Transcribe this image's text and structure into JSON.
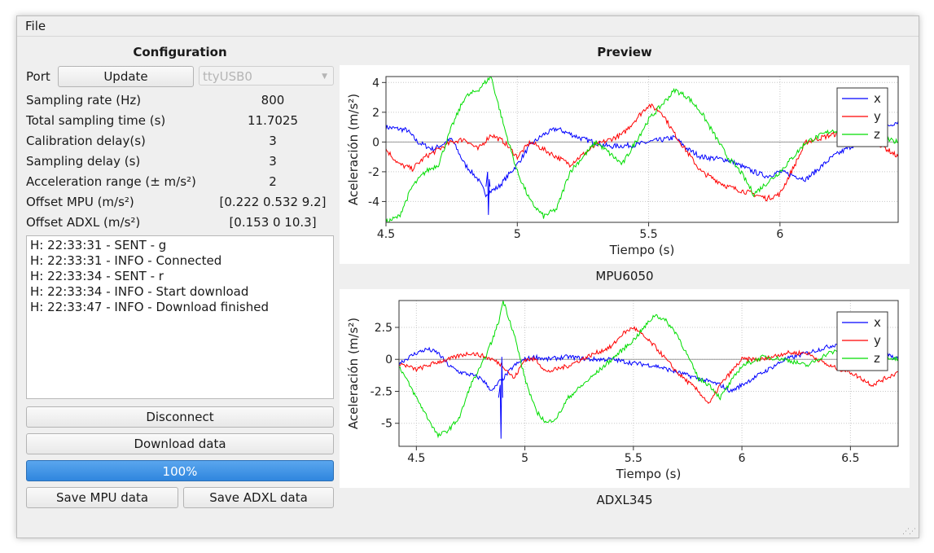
{
  "menu": {
    "file_label": "File"
  },
  "config": {
    "title": "Configuration",
    "port_label": "Port",
    "update_button": "Update",
    "port_value": "ttyUSB0",
    "rows": [
      {
        "label": "Sampling rate (Hz)",
        "value": "800"
      },
      {
        "label": "Total sampling time (s)",
        "value": "11.7025"
      },
      {
        "label": "Calibration delay(s)",
        "value": "3"
      },
      {
        "label": "Sampling delay (s)",
        "value": "3"
      },
      {
        "label": "Acceleration range (± m/s²)",
        "value": "2"
      },
      {
        "label": "Offset MPU (m/s²)",
        "value": "[0.222 0.532 9.2]"
      },
      {
        "label": "Offset ADXL (m/s²)",
        "value": "[0.153 0 10.3]"
      }
    ],
    "log_lines": [
      "H: 22:33:31 - SENT - g",
      "H: 22:33:31 - INFO - Connected",
      "H: 22:33:34 - SENT - r",
      "H: 22:33:34 - INFO - Start download",
      "H: 22:33:47 - INFO - Download finished"
    ],
    "disconnect_button": "Disconnect",
    "download_button": "Download data",
    "progress_text": "100%",
    "progress_value": 1.0,
    "save_mpu_button": "Save MPU data",
    "save_adxl_button": "Save ADXL data"
  },
  "preview": {
    "title": "Preview"
  },
  "colors": {
    "x": "#0000ff",
    "y": "#ff0000",
    "z": "#00dd00",
    "progress": "#3d8ee3"
  },
  "chart_data": [
    {
      "type": "line",
      "caption": "MPU6050",
      "xlabel": "Tiempo (s)",
      "ylabel": "Aceleración (m/s²)",
      "xlim": [
        4.5,
        6.45
      ],
      "ylim": [
        -5.4,
        4.4
      ],
      "xticks": [
        4.5,
        5,
        5.5,
        6
      ],
      "xtick_labels": [
        "4.5",
        "5",
        "5.5",
        "6"
      ],
      "yticks": [
        -4,
        -2,
        0,
        2,
        4
      ],
      "ytick_labels": [
        "-4",
        "-2",
        "0",
        "2",
        "4"
      ],
      "grid": true,
      "legend_position": "top-right",
      "series": [
        {
          "name": "x",
          "x": [
            4.5,
            4.58,
            4.62,
            4.68,
            4.75,
            4.8,
            4.85,
            4.88,
            4.9,
            4.93,
            5.0,
            5.05,
            5.1,
            5.15,
            5.25,
            5.35,
            5.45,
            5.5,
            5.6,
            5.65,
            5.7,
            5.8,
            5.9,
            5.95,
            6.0,
            6.1,
            6.2,
            6.3,
            6.4,
            6.45
          ],
          "y": [
            1.0,
            0.8,
            0.0,
            -0.5,
            0.2,
            -1.5,
            -2.5,
            -3.5,
            -3.3,
            -3.0,
            -1.5,
            -0.2,
            0.5,
            0.9,
            0.2,
            -0.3,
            -0.2,
            0.0,
            0.3,
            -0.5,
            -1.0,
            -1.2,
            -2.0,
            -2.3,
            -2.0,
            -2.5,
            -1.0,
            0.0,
            1.0,
            1.4
          ]
        },
        {
          "name": "y",
          "x": [
            4.5,
            4.55,
            4.6,
            4.65,
            4.7,
            4.75,
            4.8,
            4.85,
            4.9,
            4.95,
            5.0,
            5.05,
            5.1,
            5.15,
            5.2,
            5.3,
            5.4,
            5.5,
            5.55,
            5.6,
            5.7,
            5.8,
            5.9,
            5.95,
            6.0,
            6.1,
            6.2,
            6.3,
            6.45
          ],
          "y": [
            -0.5,
            -1.5,
            -1.8,
            -1.0,
            -0.5,
            0.0,
            0.2,
            -0.5,
            0.5,
            0.0,
            -1.0,
            0.0,
            -0.5,
            -1.0,
            -1.5,
            -0.2,
            0.5,
            2.5,
            2.0,
            0.5,
            -2.0,
            -3.0,
            -3.5,
            -3.8,
            -3.5,
            0.0,
            0.5,
            0.8,
            -1.0
          ]
        },
        {
          "name": "z",
          "x": [
            4.5,
            4.55,
            4.6,
            4.65,
            4.7,
            4.75,
            4.8,
            4.85,
            4.9,
            4.95,
            5.0,
            5.05,
            5.1,
            5.15,
            5.2,
            5.3,
            5.4,
            5.5,
            5.55,
            5.6,
            5.65,
            5.7,
            5.8,
            5.85,
            5.9,
            6.0,
            6.1,
            6.2,
            6.3,
            6.45
          ],
          "y": [
            -5.4,
            -5.0,
            -3.0,
            -2.0,
            -1.5,
            1.0,
            3.0,
            3.5,
            4.4,
            1.0,
            -2.0,
            -4.0,
            -5.0,
            -4.5,
            -2.0,
            0.0,
            -1.5,
            1.5,
            2.5,
            3.5,
            3.0,
            2.0,
            -1.0,
            -2.0,
            -3.5,
            -2.0,
            0.0,
            0.8,
            0.5,
            0.0
          ]
        }
      ]
    },
    {
      "type": "line",
      "caption": "ADXL345",
      "xlabel": "Tiempo (s)",
      "ylabel": "Aceleración (m/s²)",
      "xlim": [
        4.42,
        6.72
      ],
      "ylim": [
        -6.8,
        4.6
      ],
      "xticks": [
        4.5,
        5,
        5.5,
        6,
        6.5
      ],
      "xtick_labels": [
        "4.5",
        "5",
        "5.5",
        "6",
        "6.5"
      ],
      "yticks": [
        -5,
        -2.5,
        0,
        2.5
      ],
      "ytick_labels": [
        "-5",
        "-2.5",
        "0",
        "2.5"
      ],
      "grid": true,
      "legend_position": "top-right",
      "series": [
        {
          "name": "x",
          "x": [
            4.42,
            4.5,
            4.55,
            4.6,
            4.65,
            4.7,
            4.75,
            4.8,
            4.85,
            4.88,
            4.9,
            4.95,
            5.0,
            5.05,
            5.1,
            5.2,
            5.3,
            5.4,
            5.5,
            5.6,
            5.7,
            5.8,
            5.9,
            5.95,
            6.0,
            6.1,
            6.2,
            6.3,
            6.4,
            6.5,
            6.6,
            6.72
          ],
          "y": [
            -0.3,
            0.5,
            0.8,
            0.5,
            -0.5,
            -1.0,
            -1.2,
            -1.5,
            -2.5,
            -1.8,
            -1.5,
            -0.5,
            0.0,
            0.2,
            0.0,
            0.2,
            0.0,
            0.0,
            -0.3,
            -0.5,
            -1.0,
            -1.5,
            -2.0,
            -2.5,
            -2.0,
            -1.0,
            0.0,
            0.5,
            1.0,
            1.5,
            1.0,
            0.0
          ]
        },
        {
          "name": "y",
          "x": [
            4.42,
            4.5,
            4.55,
            4.6,
            4.65,
            4.7,
            4.75,
            4.8,
            4.85,
            4.9,
            4.95,
            5.0,
            5.05,
            5.1,
            5.2,
            5.3,
            5.4,
            5.45,
            5.5,
            5.6,
            5.7,
            5.8,
            5.85,
            5.9,
            6.0,
            6.1,
            6.2,
            6.3,
            6.4,
            6.5,
            6.6,
            6.72
          ],
          "y": [
            -0.3,
            -0.8,
            -0.5,
            -0.2,
            0.0,
            0.3,
            0.5,
            0.3,
            0.0,
            -0.5,
            -1.5,
            0.0,
            0.0,
            -1.0,
            -0.5,
            0.3,
            1.0,
            2.0,
            2.5,
            1.0,
            -1.0,
            -2.5,
            -3.5,
            -2.0,
            0.0,
            0.0,
            0.5,
            0.5,
            -0.5,
            -1.0,
            -2.0,
            -1.0
          ]
        },
        {
          "name": "z",
          "x": [
            4.42,
            4.5,
            4.55,
            4.6,
            4.65,
            4.7,
            4.75,
            4.8,
            4.85,
            4.88,
            4.9,
            4.95,
            5.0,
            5.05,
            5.1,
            5.15,
            5.2,
            5.3,
            5.4,
            5.5,
            5.6,
            5.65,
            5.7,
            5.8,
            5.85,
            5.9,
            6.0,
            6.1,
            6.2,
            6.3,
            6.4,
            6.5,
            6.6,
            6.72
          ],
          "y": [
            -0.5,
            -3.0,
            -4.5,
            -6.0,
            -5.5,
            -4.5,
            -2.0,
            -0.5,
            1.5,
            3.0,
            4.6,
            2.0,
            -1.5,
            -4.0,
            -5.0,
            -4.5,
            -3.0,
            -1.5,
            0.0,
            1.5,
            3.5,
            3.0,
            2.0,
            -1.5,
            -2.0,
            -3.0,
            -0.5,
            0.2,
            0.0,
            -0.5,
            0.5,
            0.8,
            0.5,
            0.0
          ]
        }
      ]
    }
  ]
}
